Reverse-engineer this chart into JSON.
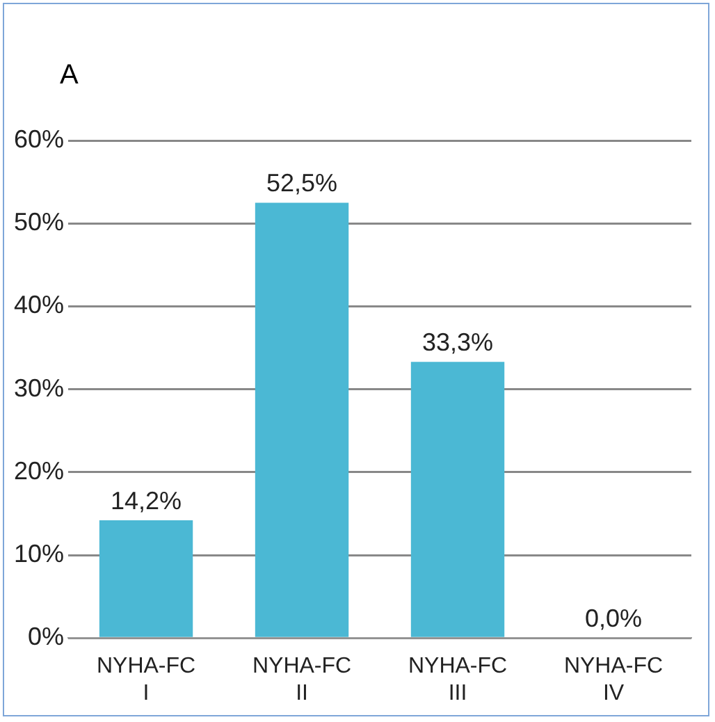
{
  "chart_data": {
    "type": "bar",
    "title": "A",
    "categories": [
      "NYHA-FC I",
      "NYHA-FC II",
      "NYHA-FC III",
      "NYHA-FC IV"
    ],
    "values": [
      14.2,
      52.5,
      33.3,
      0.0
    ],
    "value_labels": [
      "14,2%",
      "52,5%",
      "33,3%",
      "0,0%"
    ],
    "color": "#4bb8d4",
    "ylim": [
      0,
      60
    ],
    "yticks": [
      {
        "value": 0,
        "label": "0%"
      },
      {
        "value": 10,
        "label": "10%"
      },
      {
        "value": 20,
        "label": "20%"
      },
      {
        "value": 30,
        "label": "30%"
      },
      {
        "value": 40,
        "label": "40%"
      },
      {
        "value": 50,
        "label": "50%"
      },
      {
        "value": 60,
        "label": "60%"
      }
    ],
    "grid": "y",
    "legend": false
  }
}
